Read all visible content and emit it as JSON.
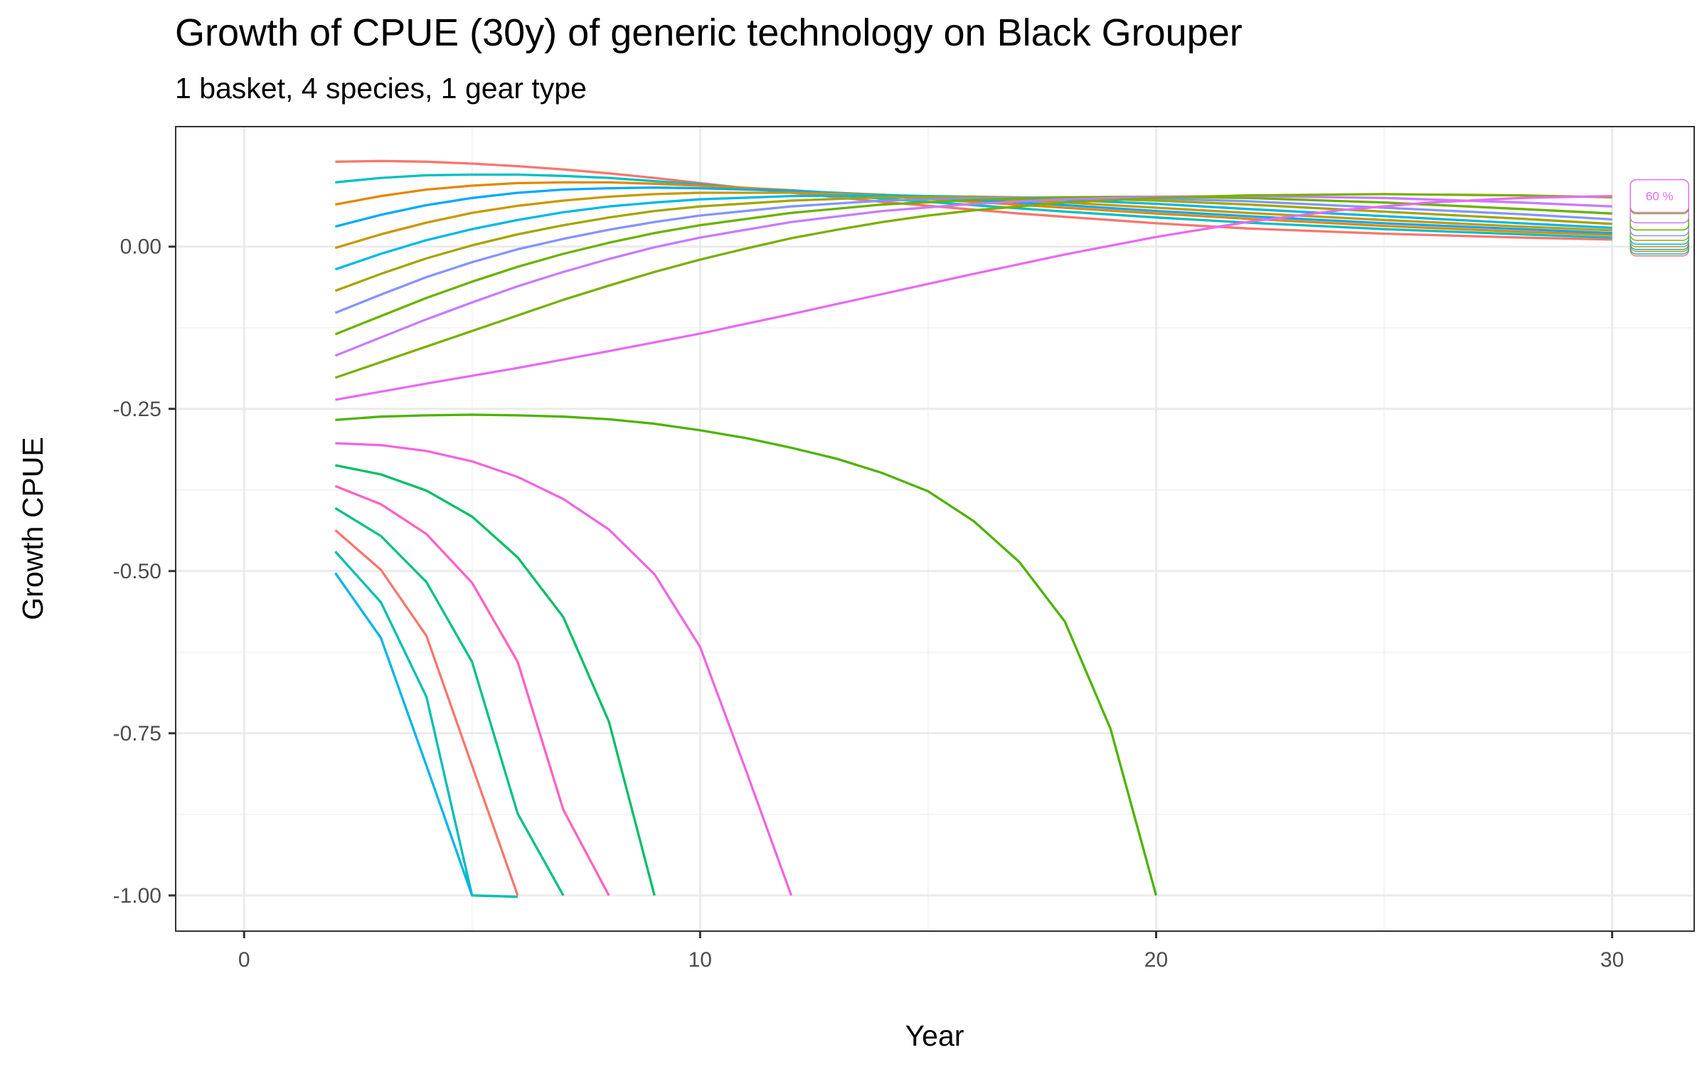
{
  "chart_data": {
    "type": "line",
    "title": "Growth of CPUE (30y) of generic technology on Black Grouper",
    "subtitle": "1 basket, 4 species, 1 gear type",
    "xlabel": "Year",
    "ylabel": "Growth CPUE",
    "xlim": [
      -1.5,
      31.8
    ],
    "ylim": [
      -1.055,
      0.185
    ],
    "x_ticks": [
      0,
      10,
      20,
      30
    ],
    "x_tick_labels": [
      "0",
      "10",
      "20",
      "30"
    ],
    "y_ticks": [
      0,
      -0.25,
      -0.5,
      -0.75,
      -1.0
    ],
    "y_tick_labels": [
      "0.00",
      "-0.25",
      "-0.50",
      "-0.75",
      "-1.00"
    ],
    "grid": true,
    "legend": "none",
    "end_label_text": "60 %",
    "series": [
      {
        "color": "#F8766D",
        "points": [
          [
            2,
            0.131
          ],
          [
            3,
            0.132
          ],
          [
            4,
            0.131
          ],
          [
            5,
            0.128
          ],
          [
            6,
            0.124
          ],
          [
            7,
            0.119
          ],
          [
            8,
            0.113
          ],
          [
            9,
            0.106
          ],
          [
            10,
            0.098
          ],
          [
            11,
            0.09
          ],
          [
            12,
            0.083
          ],
          [
            13,
            0.076
          ],
          [
            14,
            0.069
          ],
          [
            15,
            0.063
          ],
          [
            16,
            0.057
          ],
          [
            17,
            0.051
          ],
          [
            18,
            0.046
          ],
          [
            19,
            0.041
          ],
          [
            20,
            0.036
          ],
          [
            22,
            0.028
          ],
          [
            25,
            0.02
          ],
          [
            28,
            0.014
          ],
          [
            30,
            0.011
          ]
        ]
      },
      {
        "color": "#00BFC4",
        "points": [
          [
            2,
            0.099
          ],
          [
            3,
            0.106
          ],
          [
            4,
            0.11
          ],
          [
            5,
            0.111
          ],
          [
            6,
            0.111
          ],
          [
            7,
            0.109
          ],
          [
            8,
            0.106
          ],
          [
            9,
            0.101
          ],
          [
            10,
            0.096
          ],
          [
            12,
            0.085
          ],
          [
            14,
            0.074
          ],
          [
            16,
            0.064
          ],
          [
            18,
            0.054
          ],
          [
            20,
            0.045
          ],
          [
            22,
            0.037
          ],
          [
            25,
            0.027
          ],
          [
            28,
            0.019
          ],
          [
            30,
            0.014
          ]
        ]
      },
      {
        "color": "#E58700",
        "points": [
          [
            2,
            0.065
          ],
          [
            3,
            0.078
          ],
          [
            4,
            0.088
          ],
          [
            5,
            0.094
          ],
          [
            6,
            0.098
          ],
          [
            7,
            0.099
          ],
          [
            8,
            0.099
          ],
          [
            9,
            0.097
          ],
          [
            10,
            0.094
          ],
          [
            12,
            0.087
          ],
          [
            14,
            0.078
          ],
          [
            16,
            0.069
          ],
          [
            18,
            0.06
          ],
          [
            20,
            0.051
          ],
          [
            22,
            0.043
          ],
          [
            25,
            0.032
          ],
          [
            28,
            0.023
          ],
          [
            30,
            0.018
          ]
        ]
      },
      {
        "color": "#00A9FF",
        "points": [
          [
            2,
            0.031
          ],
          [
            3,
            0.049
          ],
          [
            4,
            0.064
          ],
          [
            5,
            0.075
          ],
          [
            6,
            0.083
          ],
          [
            7,
            0.088
          ],
          [
            8,
            0.09
          ],
          [
            9,
            0.091
          ],
          [
            10,
            0.09
          ],
          [
            12,
            0.086
          ],
          [
            14,
            0.08
          ],
          [
            16,
            0.072
          ],
          [
            18,
            0.064
          ],
          [
            20,
            0.055
          ],
          [
            22,
            0.047
          ],
          [
            25,
            0.036
          ],
          [
            28,
            0.027
          ],
          [
            30,
            0.021
          ]
        ]
      },
      {
        "color": "#C99800",
        "points": [
          [
            2,
            -0.002
          ],
          [
            3,
            0.019
          ],
          [
            4,
            0.037
          ],
          [
            5,
            0.052
          ],
          [
            6,
            0.063
          ],
          [
            7,
            0.071
          ],
          [
            8,
            0.077
          ],
          [
            9,
            0.081
          ],
          [
            10,
            0.083
          ],
          [
            12,
            0.083
          ],
          [
            14,
            0.08
          ],
          [
            16,
            0.075
          ],
          [
            18,
            0.068
          ],
          [
            20,
            0.06
          ],
          [
            22,
            0.052
          ],
          [
            25,
            0.041
          ],
          [
            28,
            0.031
          ],
          [
            30,
            0.025
          ]
        ]
      },
      {
        "color": "#00B8E7",
        "points": [
          [
            2,
            -0.035
          ],
          [
            3,
            -0.011
          ],
          [
            4,
            0.01
          ],
          [
            5,
            0.027
          ],
          [
            6,
            0.041
          ],
          [
            7,
            0.053
          ],
          [
            8,
            0.062
          ],
          [
            9,
            0.068
          ],
          [
            10,
            0.073
          ],
          [
            12,
            0.078
          ],
          [
            14,
            0.079
          ],
          [
            16,
            0.077
          ],
          [
            18,
            0.072
          ],
          [
            20,
            0.066
          ],
          [
            22,
            0.058
          ],
          [
            25,
            0.047
          ],
          [
            28,
            0.036
          ],
          [
            30,
            0.029
          ]
        ]
      },
      {
        "color": "#A3A500",
        "points": [
          [
            2,
            -0.068
          ],
          [
            3,
            -0.042
          ],
          [
            4,
            -0.018
          ],
          [
            5,
            0.002
          ],
          [
            6,
            0.019
          ],
          [
            7,
            0.033
          ],
          [
            8,
            0.045
          ],
          [
            9,
            0.055
          ],
          [
            10,
            0.062
          ],
          [
            12,
            0.071
          ],
          [
            14,
            0.076
          ],
          [
            16,
            0.077
          ],
          [
            18,
            0.075
          ],
          [
            20,
            0.071
          ],
          [
            22,
            0.065
          ],
          [
            25,
            0.054
          ],
          [
            28,
            0.043
          ],
          [
            30,
            0.035
          ]
        ]
      },
      {
        "color": "#8494FF",
        "points": [
          [
            2,
            -0.102
          ],
          [
            3,
            -0.074
          ],
          [
            4,
            -0.047
          ],
          [
            5,
            -0.024
          ],
          [
            6,
            -0.004
          ],
          [
            7,
            0.012
          ],
          [
            8,
            0.026
          ],
          [
            9,
            0.038
          ],
          [
            10,
            0.048
          ],
          [
            12,
            0.062
          ],
          [
            14,
            0.071
          ],
          [
            16,
            0.075
          ],
          [
            18,
            0.076
          ],
          [
            20,
            0.074
          ],
          [
            22,
            0.07
          ],
          [
            25,
            0.06
          ],
          [
            28,
            0.05
          ],
          [
            30,
            0.042
          ]
        ]
      },
      {
        "color": "#6BB100",
        "points": [
          [
            2,
            -0.135
          ],
          [
            3,
            -0.107
          ],
          [
            4,
            -0.079
          ],
          [
            5,
            -0.054
          ],
          [
            6,
            -0.031
          ],
          [
            7,
            -0.011
          ],
          [
            8,
            0.006
          ],
          [
            9,
            0.021
          ],
          [
            10,
            0.033
          ],
          [
            12,
            0.052
          ],
          [
            14,
            0.065
          ],
          [
            16,
            0.072
          ],
          [
            18,
            0.076
          ],
          [
            20,
            0.077
          ],
          [
            22,
            0.075
          ],
          [
            25,
            0.068
          ],
          [
            28,
            0.058
          ],
          [
            30,
            0.051
          ]
        ]
      },
      {
        "color": "#C77CFF",
        "points": [
          [
            2,
            -0.168
          ],
          [
            3,
            -0.14
          ],
          [
            4,
            -0.112
          ],
          [
            5,
            -0.086
          ],
          [
            6,
            -0.061
          ],
          [
            7,
            -0.039
          ],
          [
            8,
            -0.019
          ],
          [
            9,
            -0.001
          ],
          [
            10,
            0.014
          ],
          [
            12,
            0.038
          ],
          [
            14,
            0.055
          ],
          [
            16,
            0.066
          ],
          [
            18,
            0.073
          ],
          [
            20,
            0.077
          ],
          [
            22,
            0.078
          ],
          [
            25,
            0.075
          ],
          [
            28,
            0.068
          ],
          [
            30,
            0.062
          ]
        ]
      },
      {
        "color": "#7CAE00",
        "points": [
          [
            2,
            -0.202
          ],
          [
            3,
            -0.178
          ],
          [
            4,
            -0.154
          ],
          [
            5,
            -0.13
          ],
          [
            6,
            -0.106
          ],
          [
            7,
            -0.082
          ],
          [
            8,
            -0.06
          ],
          [
            9,
            -0.039
          ],
          [
            10,
            -0.02
          ],
          [
            11,
            -0.003
          ],
          [
            12,
            0.013
          ],
          [
            13,
            0.026
          ],
          [
            14,
            0.038
          ],
          [
            15,
            0.048
          ],
          [
            16,
            0.056
          ],
          [
            18,
            0.068
          ],
          [
            20,
            0.075
          ],
          [
            22,
            0.079
          ],
          [
            25,
            0.081
          ],
          [
            28,
            0.079
          ],
          [
            30,
            0.076
          ]
        ]
      },
      {
        "color": "#E76BF3",
        "points": [
          [
            2,
            -0.236
          ],
          [
            4,
            -0.211
          ],
          [
            6,
            -0.187
          ],
          [
            8,
            -0.161
          ],
          [
            10,
            -0.134
          ],
          [
            12,
            -0.104
          ],
          [
            14,
            -0.073
          ],
          [
            16,
            -0.042
          ],
          [
            18,
            -0.012
          ],
          [
            20,
            0.015
          ],
          [
            22,
            0.038
          ],
          [
            24,
            0.056
          ],
          [
            26,
            0.068
          ],
          [
            28,
            0.075
          ],
          [
            30,
            0.078
          ]
        ]
      },
      {
        "color": "#4DB300",
        "points": [
          [
            2,
            -0.267
          ],
          [
            3,
            -0.262
          ],
          [
            4,
            -0.26
          ],
          [
            5,
            -0.259
          ],
          [
            6,
            -0.26
          ],
          [
            7,
            -0.262
          ],
          [
            8,
            -0.266
          ],
          [
            9,
            -0.273
          ],
          [
            10,
            -0.283
          ],
          [
            11,
            -0.295
          ],
          [
            12,
            -0.31
          ],
          [
            13,
            -0.327
          ],
          [
            14,
            -0.349
          ],
          [
            15,
            -0.377
          ],
          [
            16,
            -0.423
          ],
          [
            17,
            -0.486
          ],
          [
            18,
            -0.578
          ],
          [
            19,
            -0.743
          ],
          [
            20,
            -1.0
          ]
        ]
      },
      {
        "color": "#F066DF",
        "points": [
          [
            2,
            -0.303
          ],
          [
            3,
            -0.306
          ],
          [
            4,
            -0.315
          ],
          [
            5,
            -0.331
          ],
          [
            6,
            -0.355
          ],
          [
            7,
            -0.389
          ],
          [
            8,
            -0.436
          ],
          [
            9,
            -0.505
          ],
          [
            10,
            -0.617
          ],
          [
            11,
            -0.806
          ],
          [
            12,
            -1.0
          ]
        ]
      },
      {
        "color": "#00BE67",
        "points": [
          [
            2,
            -0.337
          ],
          [
            3,
            -0.351
          ],
          [
            4,
            -0.376
          ],
          [
            5,
            -0.416
          ],
          [
            6,
            -0.479
          ],
          [
            7,
            -0.571
          ],
          [
            8,
            -0.732
          ],
          [
            9,
            -1.0
          ]
        ]
      },
      {
        "color": "#FF61C3",
        "points": [
          [
            2,
            -0.369
          ],
          [
            3,
            -0.397
          ],
          [
            4,
            -0.443
          ],
          [
            5,
            -0.518
          ],
          [
            6,
            -0.64
          ],
          [
            7,
            -0.868
          ],
          [
            8,
            -1.0
          ]
        ]
      },
      {
        "color": "#00C08B",
        "points": [
          [
            2,
            -0.403
          ],
          [
            3,
            -0.446
          ],
          [
            4,
            -0.517
          ],
          [
            5,
            -0.64
          ],
          [
            6,
            -0.874
          ],
          [
            7,
            -1.0
          ]
        ]
      },
      {
        "color": "#F8766D",
        "points": [
          [
            2,
            -0.437
          ],
          [
            3,
            -0.498
          ],
          [
            4,
            -0.6
          ],
          [
            5,
            -0.8
          ],
          [
            6,
            -1.0
          ]
        ]
      },
      {
        "color": "#00BFB2",
        "points": [
          [
            2,
            -0.47
          ],
          [
            3,
            -0.548
          ],
          [
            4,
            -0.694
          ],
          [
            5,
            -1.0
          ],
          [
            6,
            -1.002
          ]
        ]
      },
      {
        "color": "#00B4EF",
        "points": [
          [
            2,
            -0.503
          ],
          [
            3,
            -0.603
          ],
          [
            4,
            -0.8
          ],
          [
            5,
            -1.0
          ]
        ]
      }
    ]
  }
}
